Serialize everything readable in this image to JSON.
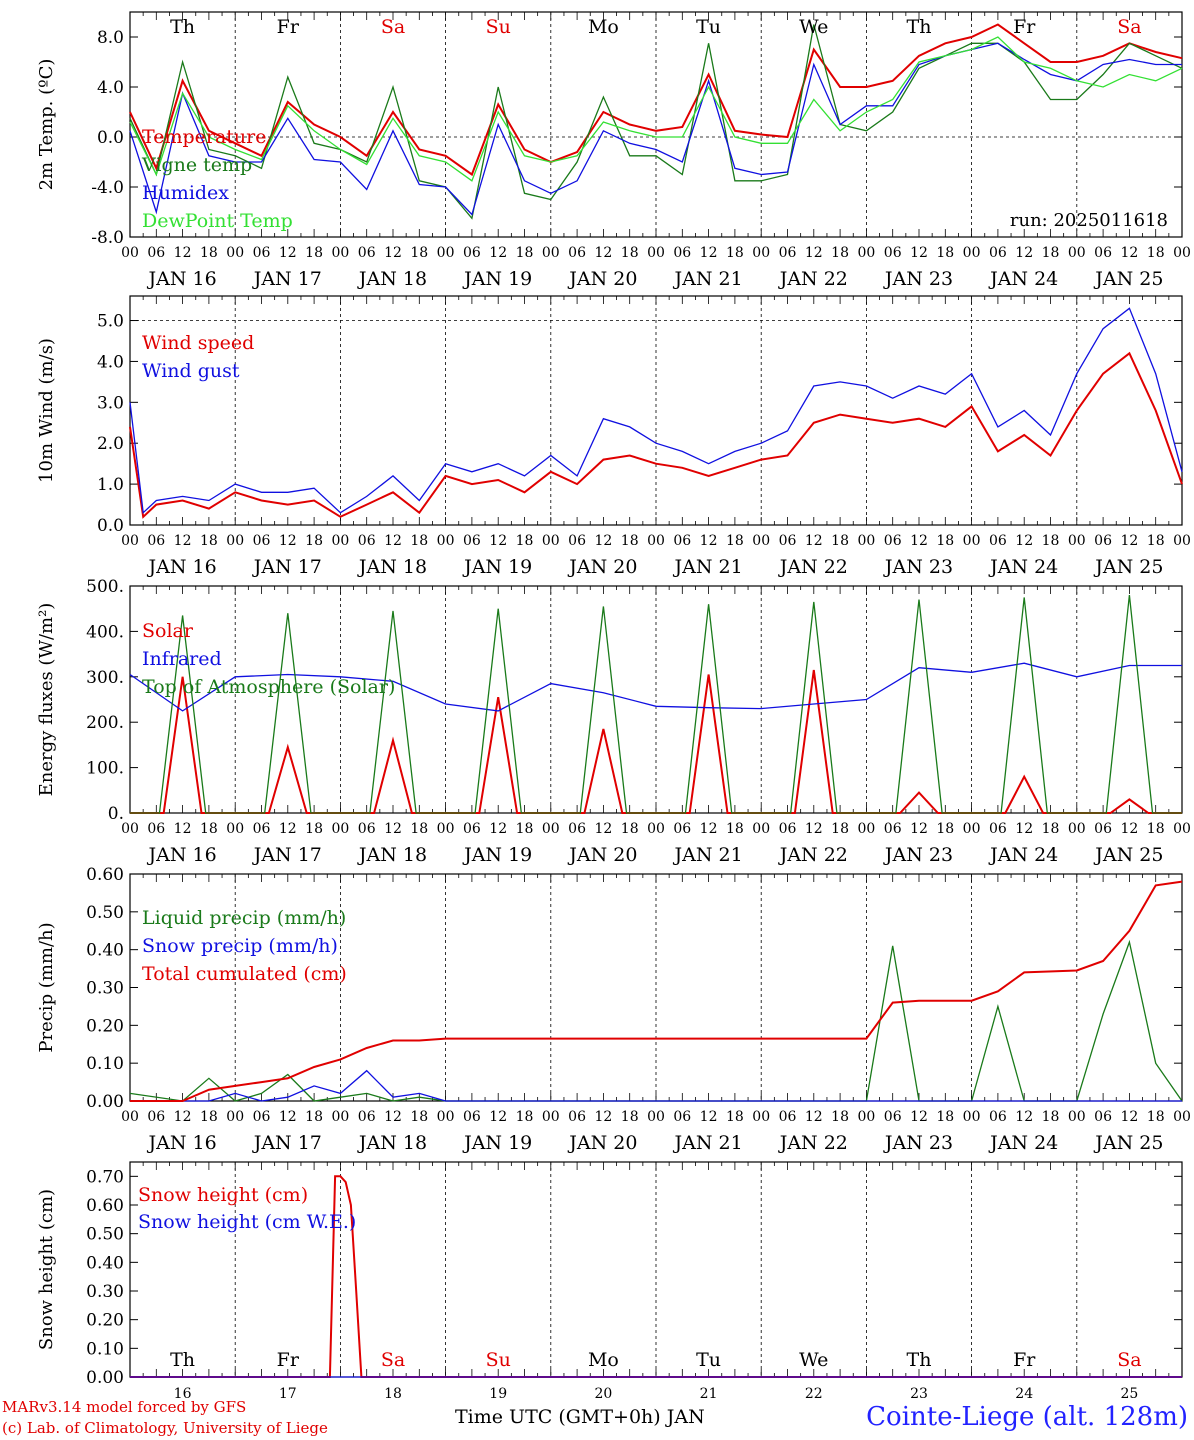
{
  "colors": {
    "red": "#e00000",
    "blue": "#1010e0",
    "green": "#1a7a1a",
    "lightgreen": "#33e033",
    "weekend": "#e00000"
  },
  "days": [
    "Th",
    "Fr",
    "Sa",
    "Su",
    "Mo",
    "Tu",
    "We",
    "Th",
    "Fr",
    "Sa"
  ],
  "weekend_days": [
    2,
    3,
    9
  ],
  "date_labels": [
    "JAN 16",
    "JAN 17",
    "JAN 18",
    "JAN 19",
    "JAN 20",
    "JAN 21",
    "JAN 22",
    "JAN 23",
    "JAN 24",
    "JAN 25"
  ],
  "hour_ticks": [
    "00",
    "06",
    "12",
    "18"
  ],
  "last_hour_tick": "00",
  "bottom_day_numbers": [
    "16",
    "17",
    "18",
    "19",
    "20",
    "21",
    "22",
    "23",
    "24",
    "25"
  ],
  "footer": {
    "model": "MARv3.14 model forced by GFS",
    "copyright": "(c) Lab. of Climatology, University of Liege",
    "xlabel": "Time UTC (GMT+0h) JAN",
    "station": "Cointe-Liege (alt. 128m)"
  },
  "chart_data": [
    {
      "type": "line",
      "ylabel": "2m Temp. (ºC)",
      "ylim": [
        -8,
        10
      ],
      "yticks": [
        "-8.0",
        "-4.0",
        "0.0",
        "4.0",
        "8.0"
      ],
      "yticks_values": [
        -8,
        -4,
        0,
        4,
        8
      ],
      "dashed_at": [
        0
      ],
      "annotation": "run: 2025011618",
      "x_days": [
        0,
        0.25,
        0.5,
        0.75,
        1,
        1.25,
        1.5,
        1.75,
        2,
        2.25,
        2.5,
        2.75,
        3,
        3.25,
        3.5,
        3.75,
        4,
        4.25,
        4.5,
        4.75,
        5,
        5.25,
        5.5,
        5.75,
        6,
        6.25,
        6.5,
        6.75,
        7,
        7.25,
        7.5,
        7.75,
        8,
        8.25,
        8.5,
        8.75,
        9,
        9.25,
        9.5,
        9.75,
        10
      ],
      "series": [
        {
          "name": "Temperature",
          "color": "red",
          "values": [
            2.0,
            -2.5,
            4.5,
            0.5,
            -0.5,
            -1.5,
            2.8,
            1.0,
            0,
            -1.5,
            2.0,
            -1.0,
            -1.5,
            -3.0,
            2.6,
            -1.0,
            -2.0,
            -1.2,
            2.0,
            1.0,
            0.5,
            0.8,
            5.0,
            0.5,
            0.2,
            0,
            7.0,
            4.0,
            4.0,
            4.5,
            6.5,
            7.5,
            8.0,
            9.0,
            7.5,
            6.0,
            6.0,
            6.5,
            7.5,
            6.8,
            6.3
          ]
        },
        {
          "name": "Vigne temp",
          "color": "green",
          "values": [
            1.5,
            -3.0,
            6.0,
            -1.0,
            -1.5,
            -2.5,
            4.8,
            -0.5,
            -1.0,
            -2.0,
            4.0,
            -3.5,
            -4.0,
            -6.5,
            4.0,
            -4.5,
            -5.0,
            -2.0,
            3.2,
            -1.5,
            -1.5,
            -3.0,
            7.5,
            -3.5,
            -3.5,
            -3.0,
            9.0,
            1.0,
            0.5,
            2.0,
            5.5,
            6.5,
            7.5,
            7.5,
            6.0,
            3.0,
            3.0,
            5.0,
            7.5,
            6.5,
            5.5
          ]
        },
        {
          "name": "Humidex",
          "color": "blue",
          "values": [
            0.5,
            -6.0,
            3.5,
            -1.5,
            -2.0,
            -2.0,
            1.5,
            -1.8,
            -2.0,
            -4.2,
            0.5,
            -3.8,
            -4.0,
            -6.2,
            1.0,
            -3.5,
            -4.5,
            -3.5,
            0.5,
            -0.5,
            -1.0,
            -2.0,
            4.5,
            -2.5,
            -3.0,
            -2.8,
            5.8,
            1.0,
            2.5,
            2.5,
            5.8,
            6.5,
            7.0,
            7.5,
            6.2,
            5.0,
            4.5,
            5.8,
            6.2,
            5.8,
            5.8
          ]
        },
        {
          "name": "DewPoint Temp",
          "color": "lightgreen",
          "values": [
            1.2,
            -3.0,
            3.5,
            0.0,
            -1.0,
            -1.8,
            2.5,
            0.5,
            -1.0,
            -2.2,
            1.5,
            -1.5,
            -2.0,
            -3.5,
            2.0,
            -1.5,
            -2.0,
            -1.5,
            1.2,
            0.5,
            0.0,
            0.0,
            4.0,
            0.0,
            -0.5,
            -0.5,
            3.0,
            0.5,
            2.0,
            3.0,
            6.0,
            6.5,
            7.0,
            8.0,
            6.0,
            5.5,
            4.5,
            4.0,
            5.0,
            4.5,
            5.5
          ]
        }
      ]
    },
    {
      "type": "line",
      "ylabel": "10m Wind (m/s)",
      "ylim": [
        0,
        5.6
      ],
      "yticks": [
        "0.0",
        "1.0",
        "2.0",
        "3.0",
        "4.0",
        "5.0"
      ],
      "yticks_values": [
        0,
        1,
        2,
        3,
        4,
        5
      ],
      "dashed_at": [
        5
      ],
      "x_days": [
        0,
        0.125,
        0.25,
        0.5,
        0.75,
        1,
        1.25,
        1.5,
        1.75,
        2,
        2.25,
        2.5,
        2.75,
        3,
        3.25,
        3.5,
        3.75,
        4,
        4.25,
        4.5,
        4.75,
        5,
        5.25,
        5.5,
        5.75,
        6,
        6.25,
        6.5,
        6.75,
        7,
        7.25,
        7.5,
        7.75,
        8,
        8.25,
        8.5,
        8.75,
        9,
        9.25,
        9.5,
        9.75,
        10
      ],
      "series": [
        {
          "name": "Wind speed",
          "color": "red",
          "values": [
            2.4,
            0.2,
            0.5,
            0.6,
            0.4,
            0.8,
            0.6,
            0.5,
            0.6,
            0.2,
            0.5,
            0.8,
            0.3,
            1.2,
            1.0,
            1.1,
            0.8,
            1.3,
            1.0,
            1.6,
            1.7,
            1.5,
            1.4,
            1.2,
            1.4,
            1.6,
            1.7,
            2.5,
            2.7,
            2.6,
            2.5,
            2.6,
            2.4,
            2.9,
            1.8,
            2.2,
            1.7,
            2.8,
            3.7,
            4.2,
            2.8,
            1.0
          ]
        },
        {
          "name": "Wind gust",
          "color": "blue",
          "values": [
            3.0,
            0.3,
            0.6,
            0.7,
            0.6,
            1.0,
            0.8,
            0.8,
            0.9,
            0.3,
            0.7,
            1.2,
            0.6,
            1.5,
            1.3,
            1.5,
            1.2,
            1.7,
            1.2,
            2.6,
            2.4,
            2.0,
            1.8,
            1.5,
            1.8,
            2.0,
            2.3,
            3.4,
            3.5,
            3.4,
            3.1,
            3.4,
            3.2,
            3.7,
            2.4,
            2.8,
            2.2,
            3.7,
            4.8,
            5.3,
            3.7,
            1.3
          ]
        }
      ]
    },
    {
      "type": "line",
      "ylabel": "Energy fluxes (W/m²)",
      "ylim": [
        0,
        500
      ],
      "yticks": [
        "0.",
        "100.",
        "200.",
        "300.",
        "400.",
        "500."
      ],
      "yticks_values": [
        0,
        100,
        200,
        300,
        400,
        500
      ],
      "series": [
        {
          "name": "Solar",
          "color": "red",
          "peaks": [
            300,
            145,
            160,
            255,
            185,
            305,
            315,
            45,
            80,
            30
          ]
        },
        {
          "name": "Infrared",
          "color": "blue",
          "x_days": [
            0,
            0.5,
            1,
            1.5,
            2,
            2.5,
            3,
            3.5,
            4,
            4.5,
            5,
            5.5,
            6,
            6.5,
            7,
            7.5,
            8,
            8.5,
            9,
            9.5,
            10
          ],
          "values": [
            305,
            225,
            300,
            305,
            300,
            290,
            240,
            225,
            285,
            265,
            235,
            232,
            230,
            240,
            250,
            320,
            310,
            330,
            300,
            325,
            325
          ]
        },
        {
          "name": "Top of Atmosphere (Solar)",
          "color": "green",
          "peaks": [
            435,
            440,
            445,
            450,
            455,
            460,
            465,
            470,
            475,
            480
          ]
        }
      ]
    },
    {
      "type": "line",
      "ylabel": "Precip (mm/h)",
      "ylim": [
        0,
        0.6
      ],
      "yticks": [
        "0.00",
        "0.10",
        "0.20",
        "0.30",
        "0.40",
        "0.50",
        "0.60"
      ],
      "yticks_values": [
        0,
        0.1,
        0.2,
        0.3,
        0.4,
        0.5,
        0.6
      ],
      "x_days": [
        0,
        0.5,
        0.75,
        1,
        1.25,
        1.5,
        1.75,
        2,
        2.25,
        2.5,
        2.75,
        3,
        4,
        5,
        6,
        7,
        7.25,
        7.5,
        8,
        8.25,
        8.5,
        9,
        9.25,
        9.5,
        9.75,
        10
      ],
      "series": [
        {
          "name": "Liquid precip (mm/h)",
          "color": "green",
          "values": [
            0.02,
            0.0,
            0.06,
            0.0,
            0.02,
            0.07,
            0.0,
            0.01,
            0.02,
            0.0,
            0.01,
            0.0,
            0.0,
            0.0,
            0.0,
            0.0,
            0.41,
            0.0,
            0.0,
            0.25,
            0.0,
            0.0,
            0.23,
            0.42,
            0.1,
            0.0
          ]
        },
        {
          "name": "Snow precip (mm/h)",
          "color": "blue",
          "values": [
            0.0,
            0.0,
            0.0,
            0.02,
            0.0,
            0.01,
            0.04,
            0.02,
            0.08,
            0.01,
            0.02,
            0.0,
            0.0,
            0.0,
            0.0,
            0.0,
            0.0,
            0.0,
            0.0,
            0.0,
            0.0,
            0.0,
            0.0,
            0.0,
            0.0,
            0.0
          ]
        },
        {
          "name": "Total cumulated (cm)",
          "color": "red",
          "values": [
            0.0,
            0.0,
            0.03,
            0.04,
            0.05,
            0.06,
            0.09,
            0.11,
            0.14,
            0.16,
            0.16,
            0.165,
            0.165,
            0.165,
            0.165,
            0.165,
            0.26,
            0.265,
            0.265,
            0.29,
            0.34,
            0.345,
            0.37,
            0.45,
            0.57,
            0.58
          ]
        }
      ]
    },
    {
      "type": "line",
      "ylabel": "Snow height (cm)",
      "ylim": [
        0,
        0.75
      ],
      "yticks": [
        "0.00",
        "0.10",
        "0.20",
        "0.30",
        "0.40",
        "0.50",
        "0.60",
        "0.70"
      ],
      "yticks_values": [
        0,
        0.1,
        0.2,
        0.3,
        0.4,
        0.5,
        0.6,
        0.7
      ],
      "x_days": [
        0,
        1.9,
        1.95,
        2.0,
        2.05,
        2.1,
        2.15,
        2.2,
        10
      ],
      "series": [
        {
          "name": "Snow height (cm)",
          "color": "red",
          "values": [
            0,
            0,
            0.7,
            0.7,
            0.68,
            0.6,
            0.3,
            0,
            0
          ]
        },
        {
          "name": "Snow height (cm W.E.)",
          "color": "blue",
          "values": [
            0,
            0,
            0,
            0,
            0,
            0,
            0,
            0,
            0
          ]
        }
      ]
    }
  ]
}
